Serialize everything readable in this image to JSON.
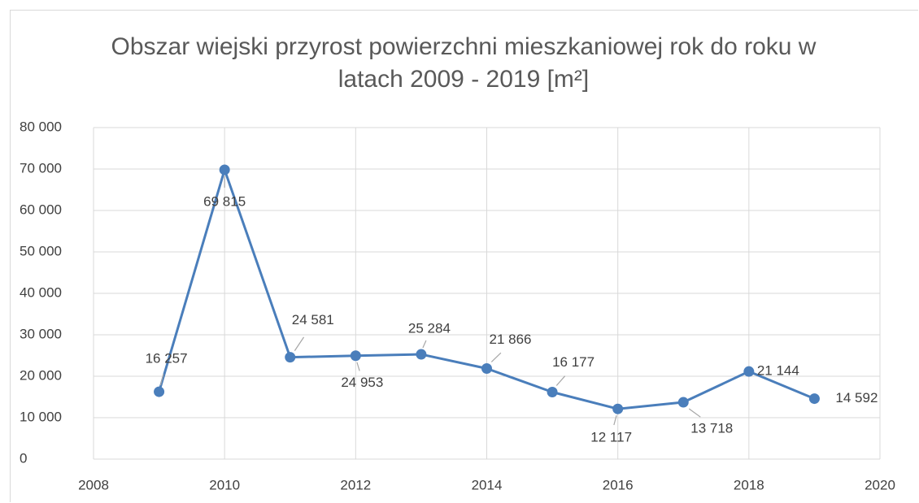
{
  "chart_data": {
    "type": "line",
    "title": "Obszar wiejski przyrost powierzchni mieszkaniowej rok do roku w latach 2009 - 2019 [m²]",
    "x": [
      2009,
      2010,
      2011,
      2012,
      2013,
      2014,
      2015,
      2016,
      2017,
      2018,
      2019
    ],
    "series": [
      {
        "name": "Obszar wiejski",
        "color": "#4a7ebb",
        "values": [
          16257,
          69815,
          24581,
          24953,
          25284,
          21866,
          16177,
          12117,
          13718,
          21144,
          14592
        ],
        "value_labels": [
          "16 257",
          "69 815",
          "24 581",
          "24 953",
          "25 284",
          "21 866",
          "16 177",
          "12 117",
          "13 718",
          "21 144",
          "14 592"
        ]
      }
    ],
    "xlim": [
      2008,
      2020
    ],
    "xticks": [
      2008,
      2010,
      2012,
      2014,
      2016,
      2018,
      2020
    ],
    "ylim": [
      0,
      80000
    ],
    "yticks": [
      {
        "value": 0,
        "label": "0"
      },
      {
        "value": 10000,
        "label": "10 000"
      },
      {
        "value": 20000,
        "label": "20 000"
      },
      {
        "value": 30000,
        "label": "30 000"
      },
      {
        "value": 40000,
        "label": "40 000"
      },
      {
        "value": 50000,
        "label": "50 000"
      },
      {
        "value": 60000,
        "label": "60 000"
      },
      {
        "value": 70000,
        "label": "70 000"
      },
      {
        "value": 80000,
        "label": "80 000"
      }
    ],
    "grid": true
  }
}
